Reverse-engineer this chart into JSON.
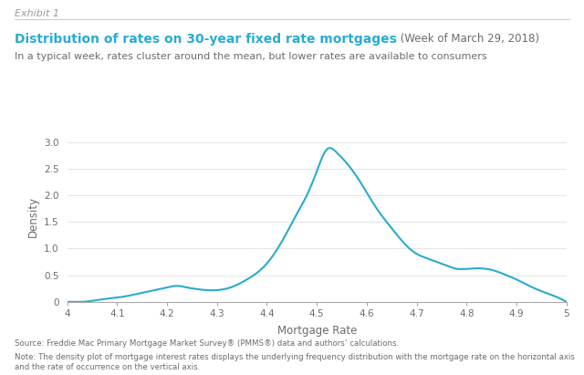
{
  "title_main": "Distribution of rates on 30-year fixed rate mortgages",
  "title_date": " (Week of March 29, 2018)",
  "subtitle": "In a typical week, rates cluster around the mean, but lower rates are available to consumers",
  "exhibit_label": "Exhibit 1",
  "xlabel": "Mortgage Rate",
  "ylabel": "Density",
  "xlim": [
    4.0,
    5.0
  ],
  "ylim": [
    0,
    3.2
  ],
  "yticks": [
    0,
    0.5,
    1.0,
    1.5,
    2.0,
    2.5,
    3.0
  ],
  "xticks": [
    4.0,
    4.1,
    4.2,
    4.3,
    4.4,
    4.5,
    4.6,
    4.7,
    4.8,
    4.9,
    5.0
  ],
  "line_color": "#2AABCF",
  "background_color": "#ffffff",
  "title_color": "#2AABCF",
  "text_color": "#6b6b6b",
  "exhibit_color": "#999999",
  "note_color": "#6b6b6b",
  "source_text": "Source: Freddie Mac Primary Mortgage Market Survey® (PMMS®) data and authors’ calculations.",
  "note_text": "Note: The density plot of mortgage interest rates displays the underlying frequency distribution with the mortgage rate on the horizontal axis and the rate of occurrence on the vertical axis.",
  "curve_x": [
    4.0,
    4.05,
    4.08,
    4.1,
    4.12,
    4.15,
    4.18,
    4.2,
    4.22,
    4.24,
    4.26,
    4.28,
    4.3,
    4.33,
    4.36,
    4.4,
    4.44,
    4.46,
    4.48,
    4.5,
    4.52,
    4.54,
    4.56,
    4.58,
    4.6,
    4.62,
    4.65,
    4.68,
    4.7,
    4.72,
    4.74,
    4.76,
    4.78,
    4.8,
    4.82,
    4.85,
    4.88,
    4.9,
    4.93,
    4.95,
    4.97,
    5.0
  ],
  "curve_y": [
    0.0,
    0.02,
    0.06,
    0.08,
    0.11,
    0.17,
    0.23,
    0.27,
    0.3,
    0.27,
    0.24,
    0.22,
    0.22,
    0.28,
    0.42,
    0.72,
    1.3,
    1.65,
    2.0,
    2.45,
    2.86,
    2.8,
    2.6,
    2.35,
    2.05,
    1.75,
    1.38,
    1.05,
    0.9,
    0.82,
    0.75,
    0.68,
    0.62,
    0.62,
    0.63,
    0.6,
    0.5,
    0.42,
    0.28,
    0.2,
    0.13,
    0.0
  ]
}
